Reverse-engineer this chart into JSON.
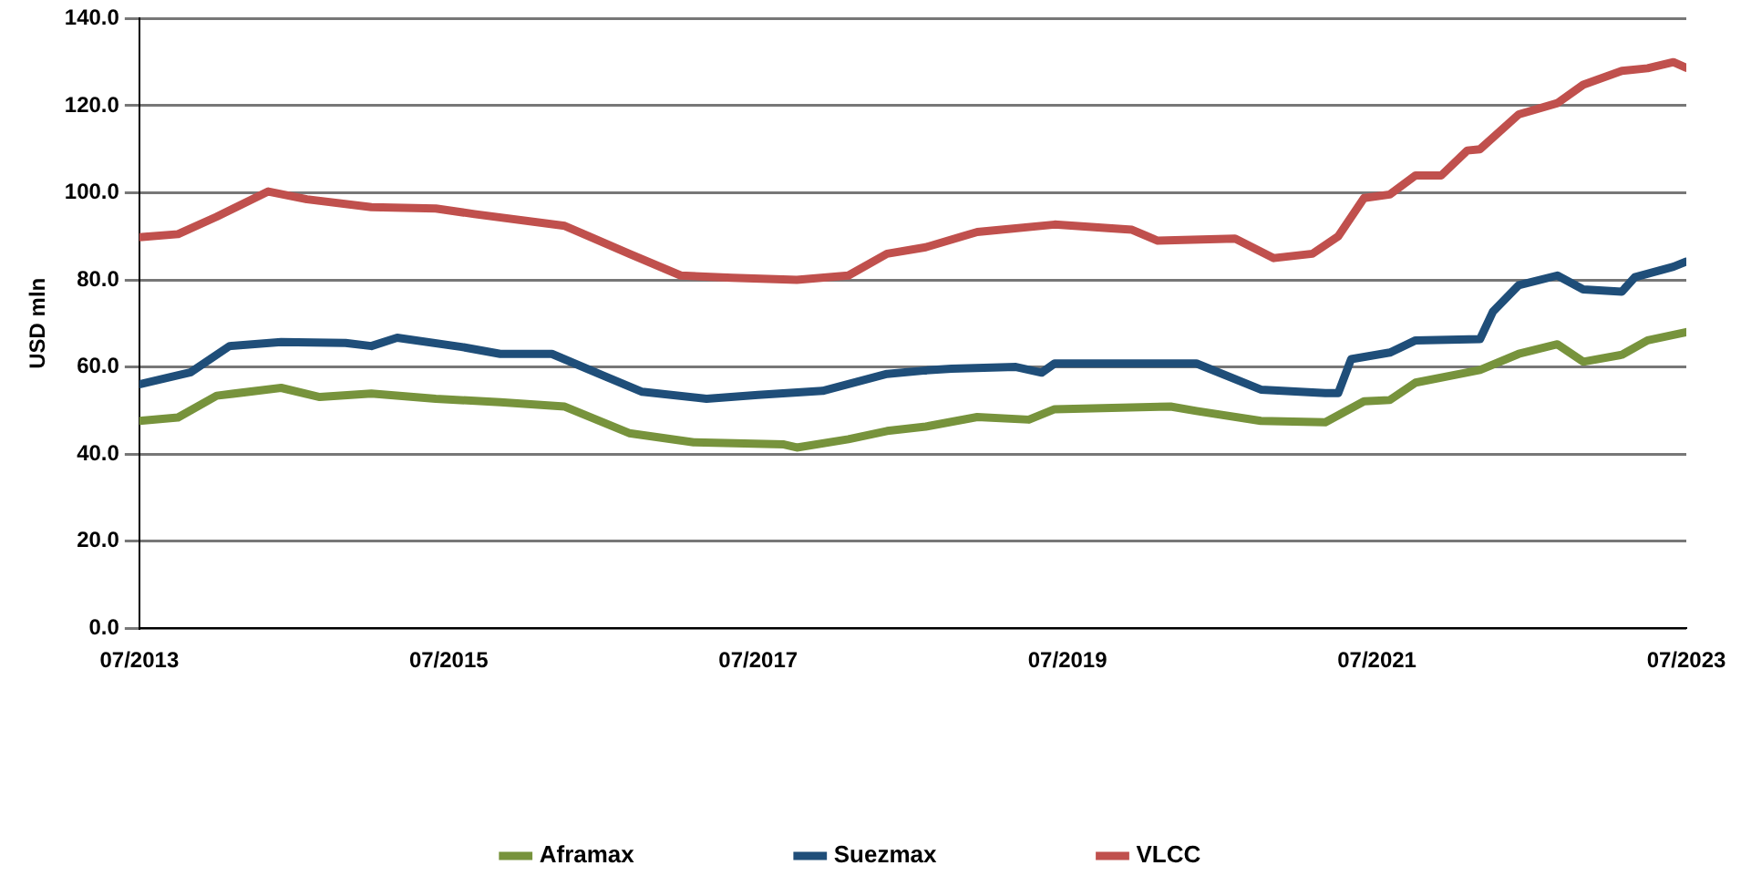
{
  "chart_data": {
    "type": "line",
    "ylabel": "USD mln",
    "legend": "bottom",
    "grid": "y",
    "marker": "none",
    "line_style": "solid",
    "ylim": [
      0,
      140
    ],
    "yticks": [
      {
        "value": 0,
        "label": "0.0"
      },
      {
        "value": 20,
        "label": "20.0"
      },
      {
        "value": 40,
        "label": "40.0"
      },
      {
        "value": 60,
        "label": "60.0"
      },
      {
        "value": 80,
        "label": "80.0"
      },
      {
        "value": 100,
        "label": "100.0"
      },
      {
        "value": 120,
        "label": "120.0"
      },
      {
        "value": 140,
        "label": "140.0"
      }
    ],
    "xlim": [
      "2013-07",
      "2023-07"
    ],
    "xticks": [
      {
        "value": "2013-07",
        "label": "07/2013"
      },
      {
        "value": "2015-07",
        "label": "07/2015"
      },
      {
        "value": "2017-07",
        "label": "07/2017"
      },
      {
        "value": "2019-07",
        "label": "07/2019"
      },
      {
        "value": "2021-07",
        "label": "07/2021"
      },
      {
        "value": "2023-07",
        "label": "07/2023"
      }
    ],
    "series": [
      {
        "name": "Aframax",
        "color": "#77933c",
        "x": [
          "2013-07",
          "2013-10",
          "2014-01",
          "2014-06",
          "2014-09",
          "2015-01",
          "2015-06",
          "2015-11",
          "2016-04",
          "2016-09",
          "2017-02",
          "2017-09",
          "2017-10",
          "2018-02",
          "2018-05",
          "2018-08",
          "2018-12",
          "2019-04",
          "2019-06",
          "2020-03",
          "2020-05",
          "2020-10",
          "2021-03",
          "2021-06",
          "2021-08",
          "2021-10",
          "2022-03",
          "2022-06",
          "2022-09",
          "2022-11",
          "2023-02",
          "2023-04",
          "2023-07"
        ],
        "values": [
          47.6,
          48.4,
          53.4,
          55.2,
          53.1,
          53.9,
          52.7,
          51.9,
          50.9,
          44.8,
          42.7,
          42.2,
          41.5,
          43.4,
          45.3,
          46.3,
          48.5,
          47.9,
          50.3,
          50.9,
          49.9,
          47.6,
          47.3,
          52.1,
          52.4,
          56.4,
          59.3,
          63,
          65.2,
          61.2,
          62.8,
          66.1,
          68
        ]
      },
      {
        "name": "Suezmax",
        "color": "#1f4e79",
        "x": [
          "2013-07",
          "2013-11",
          "2014-02",
          "2014-06",
          "2014-11",
          "2015-01",
          "2015-03",
          "2015-08",
          "2015-11",
          "2016-03",
          "2016-07",
          "2016-10",
          "2017-03",
          "2017-07",
          "2017-12",
          "2018-05",
          "2018-08",
          "2018-10",
          "2019-03",
          "2019-05",
          "2019-06",
          "2020-05",
          "2020-10",
          "2021-03",
          "2021-04",
          "2021-05",
          "2021-08",
          "2021-10",
          "2022-03",
          "2022-04",
          "2022-06",
          "2022-09",
          "2022-11",
          "2023-02",
          "2023-03",
          "2023-06",
          "2023-07"
        ],
        "values": [
          56,
          58.8,
          64.8,
          65.7,
          65.5,
          64.8,
          66.7,
          64.6,
          63,
          63,
          58,
          54.3,
          52.7,
          53.6,
          54.5,
          58.4,
          59.2,
          59.6,
          60,
          58.7,
          60.8,
          60.8,
          54.8,
          54,
          54,
          61.8,
          63.3,
          66.1,
          66.4,
          72.7,
          78.8,
          81,
          77.8,
          77.3,
          80.6,
          83,
          84.2
        ]
      },
      {
        "name": "VLCC",
        "color": "#c0504d",
        "x": [
          "2013-07",
          "2013-10",
          "2014-01",
          "2014-05",
          "2014-08",
          "2015-01",
          "2015-06",
          "2015-09",
          "2016-04",
          "2016-09",
          "2017-01",
          "2017-05",
          "2017-10",
          "2018-02",
          "2018-05",
          "2018-08",
          "2018-12",
          "2019-06",
          "2019-12",
          "2020-02",
          "2020-08",
          "2020-11",
          "2021-02",
          "2021-04",
          "2021-06",
          "2021-08",
          "2021-10",
          "2021-12",
          "2022-02",
          "2022-03",
          "2022-06",
          "2022-09",
          "2022-11",
          "2023-02",
          "2023-04",
          "2023-06",
          "2023-07"
        ],
        "values": [
          89.8,
          90.5,
          94.5,
          100.3,
          98.5,
          96.7,
          96.4,
          95.1,
          92.4,
          86,
          81,
          80.5,
          80,
          81,
          86,
          87.5,
          91,
          92.7,
          91.5,
          89,
          89.5,
          85,
          86,
          90,
          98.8,
          99.6,
          104,
          104,
          109.7,
          110,
          118,
          120.6,
          124.8,
          128,
          128.6,
          130,
          128.7
        ]
      }
    ]
  }
}
